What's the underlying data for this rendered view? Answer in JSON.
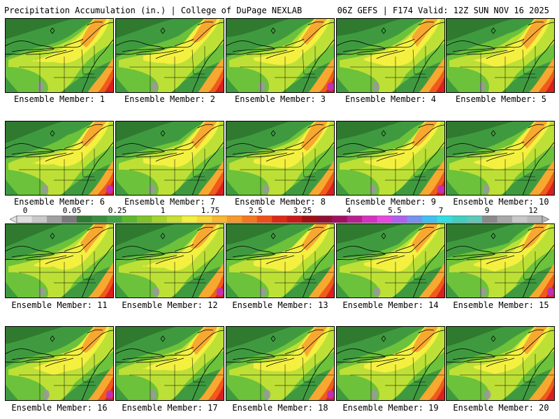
{
  "header": {
    "title_left": "Precipitation Accumulation (in.) | College of DuPage NEXLAB",
    "title_right": "06Z GEFS | F174 Valid: 12Z SUN NOV 16 2025"
  },
  "members": [
    {
      "label": "Ensemble Member: 1",
      "seed": 1
    },
    {
      "label": "Ensemble Member: 2",
      "seed": 2
    },
    {
      "label": "Ensemble Member: 3",
      "seed": 3
    },
    {
      "label": "Ensemble Member: 4",
      "seed": 4
    },
    {
      "label": "Ensemble Member: 5",
      "seed": 5
    },
    {
      "label": "Ensemble Member: 6",
      "seed": 6
    },
    {
      "label": "Ensemble Member: 7",
      "seed": 7
    },
    {
      "label": "Ensemble Member: 8",
      "seed": 8
    },
    {
      "label": "Ensemble Member: 9",
      "seed": 9
    },
    {
      "label": "Ensemble Member: 10",
      "seed": 10
    },
    {
      "label": "Ensemble Member: 11",
      "seed": 11
    },
    {
      "label": "Ensemble Member: 12",
      "seed": 12
    },
    {
      "label": "Ensemble Member: 13",
      "seed": 13
    },
    {
      "label": "Ensemble Member: 14",
      "seed": 14
    },
    {
      "label": "Ensemble Member: 15",
      "seed": 15
    },
    {
      "label": "Ensemble Member: 16",
      "seed": 16
    },
    {
      "label": "Ensemble Member: 17",
      "seed": 17
    },
    {
      "label": "Ensemble Member: 18",
      "seed": 18
    },
    {
      "label": "Ensemble Member: 19",
      "seed": 19
    },
    {
      "label": "Ensemble Member: 20",
      "seed": 20
    }
  ],
  "legend": {
    "labels": [
      "0",
      "0.05",
      "0.25",
      "1",
      "1.75",
      "2.5",
      "3.25",
      "4",
      "5.5",
      "7",
      "9",
      "12"
    ],
    "colors": [
      "#e0e0e0",
      "#c8c8c8",
      "#a0a0a0",
      "#7a7a7a",
      "#2e7d32",
      "#388e3c",
      "#43a047",
      "#5cb82e",
      "#7cc427",
      "#a4d42a",
      "#c8e030",
      "#f0f040",
      "#f8d838",
      "#f8b830",
      "#f89828",
      "#f47820",
      "#f05018",
      "#e02818",
      "#c81818",
      "#a01010",
      "#901030",
      "#a01060",
      "#b82090",
      "#d830c0",
      "#e848e0",
      "#b060f0",
      "#7890f0",
      "#40c0f0",
      "#30e0e0",
      "#40d0c0",
      "#60c8b8",
      "#8a8a8a",
      "#a8a8a8",
      "#c8c8c8",
      "#b8b8b8"
    ]
  },
  "palette": {
    "dark_green": "#2f7a2f",
    "green": "#3f9a3f",
    "light_green": "#6cc23a",
    "yellow_green": "#bde036",
    "yellow": "#f4f040",
    "orange": "#f7a830",
    "red_orange": "#f05a1a",
    "red": "#d82020",
    "magenta": "#c030b0",
    "gray": "#9a9a9a"
  }
}
